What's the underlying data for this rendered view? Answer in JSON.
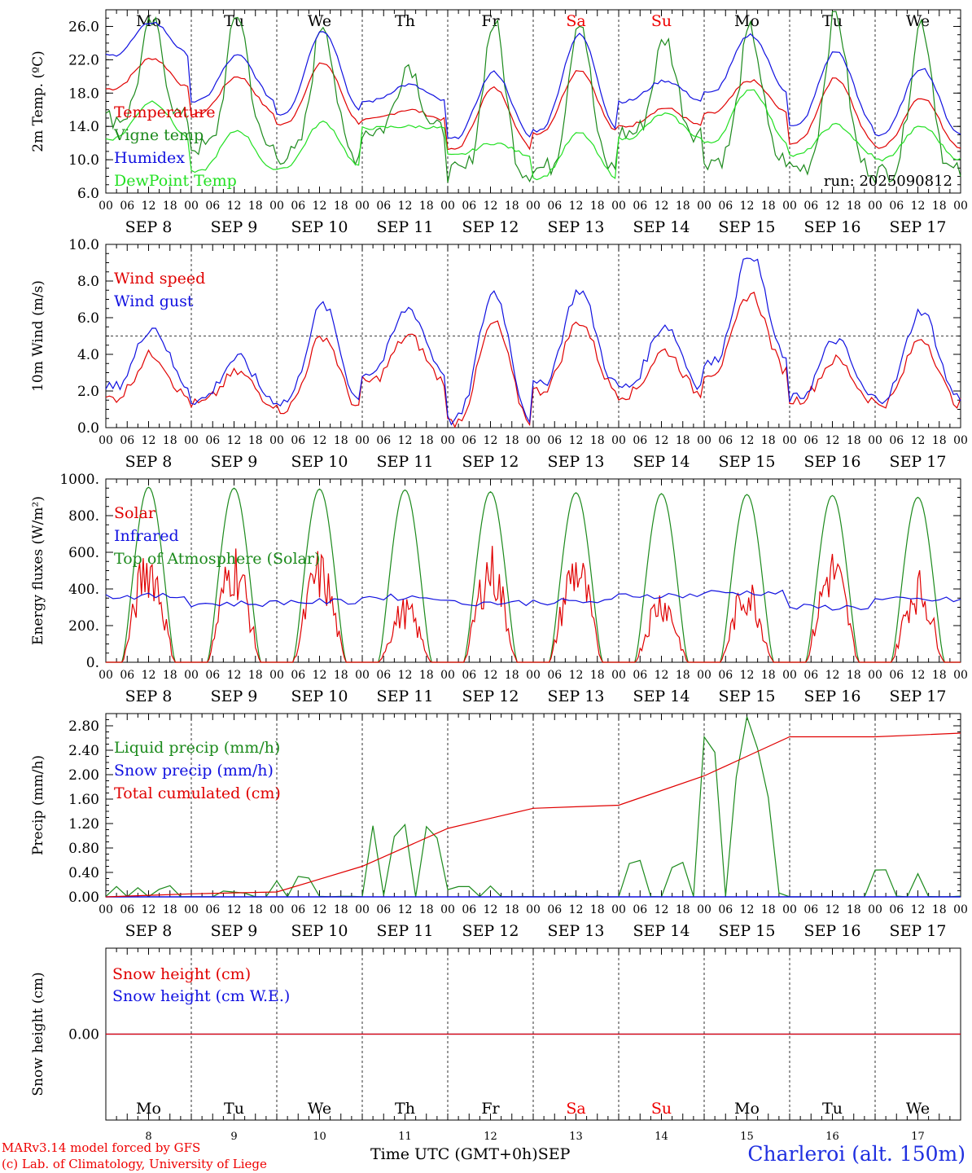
{
  "chart_data": [
    {
      "type": "line",
      "ylabel": "2m Temp. (ºC)",
      "ylim": [
        6.0,
        28.0
      ],
      "yticks": [
        "6.0",
        "10.0",
        "14.0",
        "18.0",
        "22.0",
        "26.0"
      ],
      "run_label": "run: 2025090812",
      "weekdays": [
        "Mo",
        "Tu",
        "We",
        "Th",
        "Fr",
        "Sa",
        "Su",
        "Mo",
        "Tu",
        "We"
      ],
      "weekday_colors": [
        "#000",
        "#000",
        "#000",
        "#000",
        "#000",
        "#e00",
        "#e00",
        "#000",
        "#000",
        "#000"
      ],
      "series": [
        {
          "name": "Temperature",
          "color": "#e00000",
          "daily_min": [
            18.5,
            15.5,
            14.2,
            14.8,
            11.2,
            13.2,
            14.0,
            15.5,
            12.0,
            11.5
          ],
          "daily_max": [
            22.2,
            20.0,
            21.6,
            16.0,
            18.6,
            20.8,
            16.2,
            19.5,
            19.8,
            17.5
          ]
        },
        {
          "name": "Vigne temp",
          "color": "#1c8a1c",
          "daily_min": [
            15.0,
            11.5,
            10.5,
            13.5,
            8.5,
            9.0,
            13.2,
            10.0,
            9.0,
            8.5
          ],
          "daily_max": [
            26.5,
            27.5,
            26.5,
            21.5,
            26.5,
            27.0,
            24.5,
            25.5,
            27.5,
            26.5
          ]
        },
        {
          "name": "Humidex",
          "color": "#1010e0",
          "daily_min": [
            22.5,
            17.0,
            15.5,
            17.0,
            12.5,
            13.5,
            17.0,
            18.0,
            14.0,
            13.0
          ],
          "daily_max": [
            26.5,
            22.5,
            25.5,
            19.0,
            20.5,
            25.0,
            19.5,
            25.0,
            23.0,
            21.0
          ]
        },
        {
          "name": "DewPoint Temp",
          "color": "#22e022",
          "daily_min": [
            12.5,
            8.5,
            9.0,
            13.8,
            10.5,
            7.8,
            12.5,
            12.0,
            10.5,
            10.0
          ],
          "daily_max": [
            17.0,
            13.5,
            14.5,
            14.0,
            12.0,
            13.2,
            15.5,
            18.5,
            14.2,
            14.0
          ]
        }
      ]
    },
    {
      "type": "line",
      "ylabel": "10m Wind (m/s)",
      "ylim": [
        0.0,
        10.0
      ],
      "yticks": [
        "0.0",
        "2.0",
        "4.0",
        "6.0",
        "8.0",
        "10.0"
      ],
      "reference_line": 5.0,
      "series": [
        {
          "name": "Wind speed",
          "color": "#e00000",
          "daily_min": [
            1.6,
            1.3,
            1.0,
            2.5,
            0.3,
            2.0,
            1.8,
            3.0,
            1.5,
            1.3
          ],
          "daily_max": [
            4.0,
            3.0,
            5.0,
            5.0,
            5.7,
            5.8,
            4.2,
            7.3,
            3.7,
            4.9
          ]
        },
        {
          "name": "Wind gust",
          "color": "#1010e0",
          "daily_min": [
            2.2,
            1.5,
            1.4,
            3.0,
            0.4,
            2.3,
            2.2,
            3.5,
            1.6,
            1.6
          ],
          "daily_max": [
            5.5,
            3.8,
            6.7,
            6.5,
            7.4,
            7.5,
            5.6,
            9.5,
            4.8,
            6.4
          ]
        }
      ]
    },
    {
      "type": "line",
      "ylabel": "Energy fluxes (W/m²)",
      "ylim": [
        0,
        1000
      ],
      "yticks": [
        "0.",
        "200.",
        "400.",
        "600.",
        "800.",
        "1000."
      ],
      "series": [
        {
          "name": "Solar",
          "color": "#e00000",
          "daily_peak": [
            680,
            680,
            630,
            360,
            660,
            660,
            430,
            490,
            650,
            520
          ]
        },
        {
          "name": "Infrared",
          "color": "#1010e0",
          "daily_mean": [
            360,
            320,
            330,
            355,
            325,
            330,
            365,
            380,
            300,
            340
          ]
        },
        {
          "name": "Top of Atmosphere (Solar)",
          "color": "#1c8a1c",
          "daily_peak": [
            955,
            950,
            945,
            940,
            930,
            925,
            920,
            915,
            910,
            900
          ]
        }
      ]
    },
    {
      "type": "line",
      "ylabel": "Precip (mm/h)",
      "ylim": [
        0.0,
        3.0
      ],
      "yticks": [
        "0.00",
        "0.40",
        "0.80",
        "1.20",
        "1.60",
        "2.00",
        "2.40",
        "2.80"
      ],
      "series": [
        {
          "name": "Liquid precip (mm/h)",
          "color": "#1c8a1c",
          "daily_peak": [
            0.22,
            0.1,
            0.45,
            1.2,
            0.2,
            0.32,
            0.6,
            2.95,
            0.0,
            0.48
          ]
        },
        {
          "name": "Snow precip (mm/h)",
          "color": "#1010e0",
          "daily_peak": [
            0,
            0,
            0,
            0,
            0,
            0,
            0,
            0,
            0,
            0
          ]
        },
        {
          "name": "Total cumulated (cm)",
          "color": "#e00000",
          "daily_end": [
            0.05,
            0.08,
            0.5,
            1.12,
            1.45,
            1.5,
            1.98,
            2.62,
            2.62,
            2.68
          ]
        }
      ]
    },
    {
      "type": "line",
      "ylabel": "Snow height (cm)",
      "yticks": [
        "0.00"
      ],
      "series": [
        {
          "name": "Snow height (cm)",
          "color": "#e00000",
          "value": 0.0
        },
        {
          "name": "Snow height (cm W.E.)",
          "color": "#1010e0",
          "value": 0.0
        }
      ],
      "weekdays": [
        "Mo",
        "Tu",
        "We",
        "Th",
        "Fr",
        "Sa",
        "Su",
        "Mo",
        "Tu",
        "We"
      ],
      "day_numbers": [
        "8",
        "9",
        "10",
        "11",
        "12",
        "13",
        "14",
        "15",
        "16",
        "17"
      ]
    }
  ],
  "x_axis": {
    "hour_ticks": [
      "00",
      "06",
      "12",
      "18"
    ],
    "day_labels": [
      "SEP  8",
      "SEP  9",
      "SEP 10",
      "SEP 11",
      "SEP 12",
      "SEP 13",
      "SEP 14",
      "SEP 15",
      "SEP 16",
      "SEP 17"
    ],
    "title": "Time UTC (GMT+0h)",
    "month": "SEP"
  },
  "footer": {
    "credit_line1": "MARv3.14 model forced by GFS",
    "credit_line2": "(c) Lab. of Climatology, University of Liege",
    "station": "Charleroi (alt. 150m)"
  }
}
